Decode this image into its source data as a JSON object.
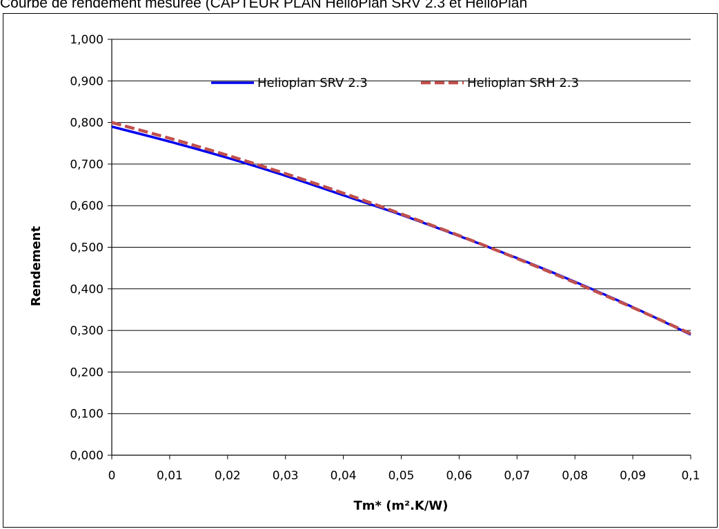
{
  "chart_data": {
    "type": "line",
    "title": "Courbe de rendement mesurée (CAPTEUR PLAN HelioPlan SRV 2.3 et HelioPlan",
    "xlabel": "Tm* (m².K/W)",
    "ylabel": "Rendement",
    "xlim": [
      0,
      0.1
    ],
    "ylim": [
      0,
      1
    ],
    "x_ticks": [
      "0",
      "0,01",
      "0,02",
      "0,03",
      "0,04",
      "0,05",
      "0,06",
      "0,07",
      "0,08",
      "0,09",
      "0,1"
    ],
    "y_ticks": [
      "0,000",
      "0,100",
      "0,200",
      "0,300",
      "0,400",
      "0,500",
      "0,600",
      "0,700",
      "0,800",
      "0,900",
      "1,000"
    ],
    "grid": "horizontal",
    "legend_position": "top-center",
    "x": [
      0,
      0.01,
      0.02,
      0.03,
      0.04,
      0.05,
      0.06,
      0.07,
      0.08,
      0.09,
      0.1
    ],
    "series": [
      {
        "name": "Helioplan SRV 2.3",
        "color": "#0000ee",
        "style": "solid",
        "values": [
          0.79,
          0.754,
          0.715,
          0.672,
          0.625,
          0.578,
          0.527,
          0.474,
          0.417,
          0.356,
          0.29
        ]
      },
      {
        "name": "Helioplan SRH 2.3",
        "color": "#c0504d",
        "style": "dashed",
        "values": [
          0.8,
          0.762,
          0.721,
          0.677,
          0.63,
          0.58,
          0.528,
          0.473,
          0.415,
          0.355,
          0.292
        ]
      }
    ]
  }
}
